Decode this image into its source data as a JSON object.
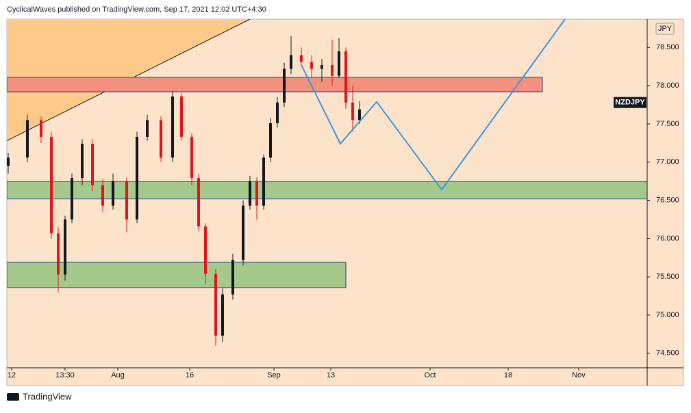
{
  "header": "CyclicalWaves published on TradingView.com, Sep 17, 2021 12:02 UTC+4:30",
  "footer": "TradingView",
  "chart_data": {
    "type": "candlestick",
    "symbol": "NZDJPY",
    "currency": "JPY",
    "up_color": "#131722",
    "down_color": "#e0141e",
    "xlim": [
      10,
      945
    ],
    "ylim": [
      74.31,
      78.87
    ],
    "xticks": [
      {
        "value": 17,
        "label": "12"
      },
      {
        "value": 95,
        "label": "13:30"
      },
      {
        "value": 172,
        "label": "Aug"
      },
      {
        "value": 277,
        "label": "16"
      },
      {
        "value": 400,
        "label": "Sep"
      },
      {
        "value": 483,
        "label": "13"
      },
      {
        "value": 628,
        "label": "Oct"
      },
      {
        "value": 742,
        "label": "18"
      },
      {
        "value": 845,
        "label": "Nov"
      }
    ],
    "yticks": [
      {
        "value": 78.5,
        "label": "78.500"
      },
      {
        "value": 78,
        "label": "78.000"
      },
      {
        "value": 77.5,
        "label": "77.500"
      },
      {
        "value": 77,
        "label": "77.000"
      },
      {
        "value": 76.5,
        "label": "76.500"
      },
      {
        "value": 76,
        "label": "76.000"
      },
      {
        "value": 75.5,
        "label": "75.500"
      },
      {
        "value": 75,
        "label": "75.000"
      },
      {
        "value": 74.5,
        "label": "74.500"
      }
    ],
    "symbol_price": 77.78,
    "candles": [
      [
        12,
        76.95,
        77.12,
        76.85,
        77.06
      ],
      [
        40,
        77.06,
        77.62,
        77.0,
        77.55
      ],
      [
        60,
        77.55,
        77.6,
        77.25,
        77.33
      ],
      [
        75,
        77.33,
        77.4,
        76.0,
        76.07
      ],
      [
        85,
        76.07,
        76.15,
        75.3,
        75.53
      ],
      [
        95,
        75.53,
        76.3,
        75.45,
        76.25
      ],
      [
        105,
        76.25,
        76.85,
        76.2,
        76.79
      ],
      [
        120,
        76.79,
        77.3,
        76.7,
        77.24
      ],
      [
        135,
        77.24,
        77.3,
        76.62,
        76.7
      ],
      [
        150,
        76.7,
        76.78,
        76.35,
        76.43
      ],
      [
        165,
        76.43,
        76.85,
        76.38,
        76.75
      ],
      [
        185,
        76.75,
        76.8,
        76.08,
        76.25
      ],
      [
        200,
        76.25,
        77.4,
        76.2,
        77.33
      ],
      [
        215,
        77.33,
        77.62,
        77.28,
        77.55
      ],
      [
        235,
        77.55,
        77.6,
        77.0,
        77.06
      ],
      [
        252,
        77.06,
        77.93,
        77.0,
        77.86
      ],
      [
        265,
        77.86,
        77.9,
        77.28,
        77.33
      ],
      [
        280,
        77.33,
        77.38,
        76.7,
        76.79
      ],
      [
        290,
        76.79,
        76.85,
        76.1,
        76.16
      ],
      [
        300,
        76.16,
        76.2,
        75.4,
        75.54
      ],
      [
        315,
        75.54,
        75.6,
        74.6,
        74.73
      ],
      [
        325,
        74.73,
        75.35,
        74.65,
        75.27
      ],
      [
        340,
        75.27,
        75.8,
        75.2,
        75.72
      ],
      [
        355,
        75.72,
        76.5,
        75.65,
        76.43
      ],
      [
        365,
        76.43,
        76.82,
        76.38,
        76.75
      ],
      [
        375,
        76.75,
        76.8,
        76.25,
        76.43
      ],
      [
        385,
        76.43,
        77.1,
        76.38,
        77.06
      ],
      [
        395,
        77.06,
        77.58,
        77.0,
        77.51
      ],
      [
        405,
        77.51,
        77.85,
        77.45,
        77.78
      ],
      [
        415,
        77.78,
        78.3,
        77.72,
        78.22
      ],
      [
        425,
        78.22,
        78.65,
        78.15,
        78.4
      ],
      [
        440,
        78.4,
        78.5,
        78.25,
        78.31
      ],
      [
        455,
        78.31,
        78.4,
        78.1,
        78.22
      ],
      [
        470,
        78.22,
        78.35,
        78.05,
        78.27
      ],
      [
        485,
        78.27,
        78.6,
        78.0,
        78.13
      ],
      [
        495,
        78.13,
        78.62,
        78.1,
        78.45
      ],
      [
        505,
        78.45,
        78.5,
        77.7,
        77.78
      ],
      [
        515,
        77.78,
        78.0,
        77.4,
        77.55
      ],
      [
        525,
        77.55,
        77.8,
        77.5,
        77.69
      ]
    ],
    "zones": [
      {
        "x": [
          10,
          792
        ],
        "y": [
          77.92,
          78.11
        ],
        "color": "#f4907e"
      },
      {
        "x": [
          10,
          945
        ],
        "y": [
          76.52,
          76.75
        ],
        "color": "#a5c98b"
      },
      {
        "x": [
          10,
          505
        ],
        "y": [
          75.36,
          75.69
        ],
        "color": "#a5c98b"
      }
    ],
    "trendline": {
      "x": [
        10,
        365
      ],
      "y": [
        77.28,
        78.87
      ],
      "color": "#ffc98a"
    },
    "projection": {
      "x": [
        440,
        497,
        550,
        645,
        825
      ],
      "y": [
        78.27,
        77.24,
        77.79,
        76.64,
        78.87
      ],
      "color": "#3d97e0"
    }
  }
}
